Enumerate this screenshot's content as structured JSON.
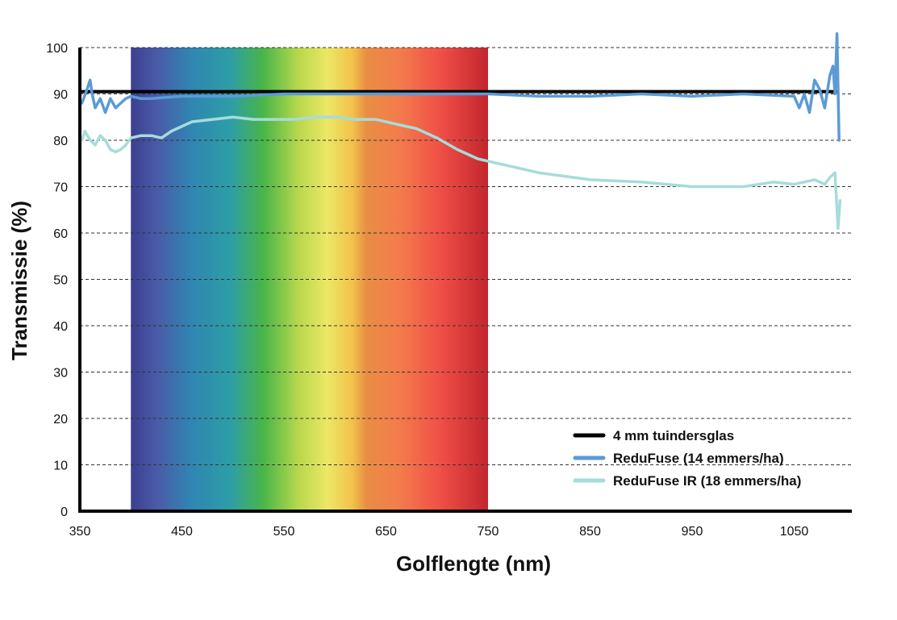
{
  "chart_data": {
    "type": "line",
    "title": "",
    "xlabel": "Golflengte (nm)",
    "ylabel": "Transmissie (%)",
    "xlim": [
      350,
      1095
    ],
    "ylim": [
      0,
      100
    ],
    "xticks": [
      350,
      450,
      550,
      650,
      750,
      850,
      950,
      1050
    ],
    "yticks": [
      0,
      10,
      20,
      30,
      40,
      50,
      60,
      70,
      80,
      90,
      100
    ],
    "grid": "horizontal-dashed",
    "legend_position": "bottom-right",
    "visible_spectrum_band": [
      400,
      750
    ],
    "series": [
      {
        "name": "4 mm tuindersglas",
        "color": "#000000",
        "x": [
          350,
          1092
        ],
        "y": [
          90.5,
          90.5
        ]
      },
      {
        "name": "ReduFuse (14 emmers/ha)",
        "color": "#5b9bd5",
        "x": [
          352,
          357,
          360,
          362,
          365,
          370,
          375,
          380,
          385,
          390,
          395,
          400,
          410,
          420,
          450,
          500,
          550,
          600,
          650,
          700,
          750,
          800,
          850,
          900,
          950,
          1000,
          1050,
          1055,
          1060,
          1065,
          1070,
          1075,
          1080,
          1085,
          1088,
          1090,
          1092,
          1094
        ],
        "y": [
          88,
          91,
          93,
          90,
          87,
          89,
          86,
          89,
          87,
          88,
          89,
          89.5,
          89,
          89,
          89.5,
          89.5,
          90,
          90,
          90,
          90,
          90,
          89.5,
          89.5,
          90,
          89.5,
          90,
          89.5,
          87,
          90,
          86,
          93,
          91,
          87,
          94,
          96,
          90,
          103,
          80
        ]
      },
      {
        "name": "ReduFuse IR (18 emmers/ha)",
        "color": "#a6dcd9",
        "x": [
          352,
          355,
          360,
          365,
          370,
          375,
          380,
          385,
          390,
          395,
          400,
          410,
          420,
          430,
          440,
          460,
          480,
          500,
          520,
          540,
          560,
          580,
          600,
          620,
          640,
          660,
          680,
          700,
          720,
          740,
          760,
          780,
          800,
          850,
          900,
          950,
          1000,
          1030,
          1050,
          1060,
          1070,
          1080,
          1085,
          1090,
          1093,
          1095
        ],
        "y": [
          80,
          82,
          80,
          79,
          81,
          80,
          78,
          77.5,
          78,
          79,
          80.5,
          81,
          81,
          80.5,
          82,
          84,
          84.5,
          85,
          84.5,
          84.5,
          84.5,
          85,
          85,
          84.5,
          84.5,
          83.5,
          82.5,
          80.5,
          78,
          76,
          75,
          74,
          73,
          71.5,
          71,
          70,
          70,
          71,
          70.5,
          71,
          71.5,
          70.5,
          72,
          73,
          61,
          67
        ]
      }
    ]
  }
}
